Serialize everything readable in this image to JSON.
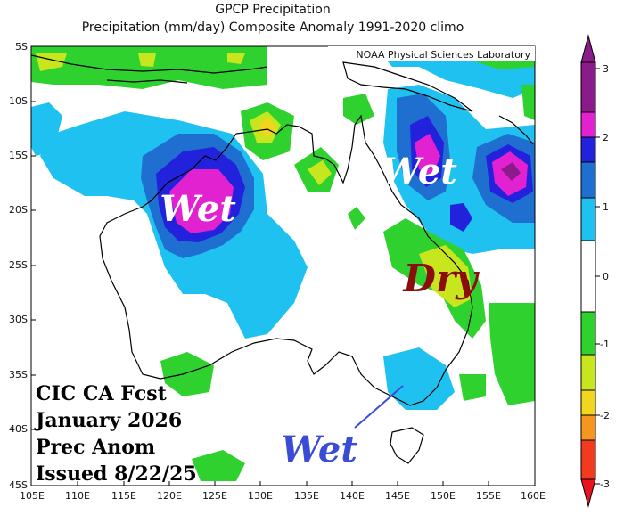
{
  "header": {
    "title": "GPCP Precipitation",
    "subtitle": "Precipitation (mm/day) Composite Anomaly 1991-2020 climo",
    "credit": "NOAA Physical Sciences Laboratory"
  },
  "map": {
    "lat_labels": [
      "5S",
      "10S",
      "15S",
      "20S",
      "25S",
      "30S",
      "35S",
      "40S",
      "45S"
    ],
    "lon_labels": [
      "105E",
      "110E",
      "115E",
      "120E",
      "125E",
      "130E",
      "135E",
      "140E",
      "145E",
      "150E",
      "155E",
      "160E"
    ]
  },
  "annotations": {
    "wet_nw": "Wet",
    "wet_ne": "Wet",
    "dry_e": "Dry",
    "wet_se": "Wet"
  },
  "forecast": {
    "line1": "CIC CA Fcst",
    "line2": "January 2026",
    "line3": "Prec Anom",
    "line4": "Issued 8/22/25"
  },
  "colorbar": {
    "labels": [
      "3",
      "2",
      "1",
      "0",
      "-1",
      "-2",
      "-3"
    ],
    "colors": [
      "#8b1a8b",
      "#e221d0",
      "#2222dd",
      "#1f6fd1",
      "#1ec1f0",
      "#ffffff",
      "#2fd12f",
      "#c8e61e",
      "#f2d51e",
      "#f5961e",
      "#f23a1e"
    ]
  },
  "colors": {
    "wet_text": "#ffffff",
    "dry_text": "#8b0d0d",
    "wet_se_text": "#3a4bd6"
  }
}
